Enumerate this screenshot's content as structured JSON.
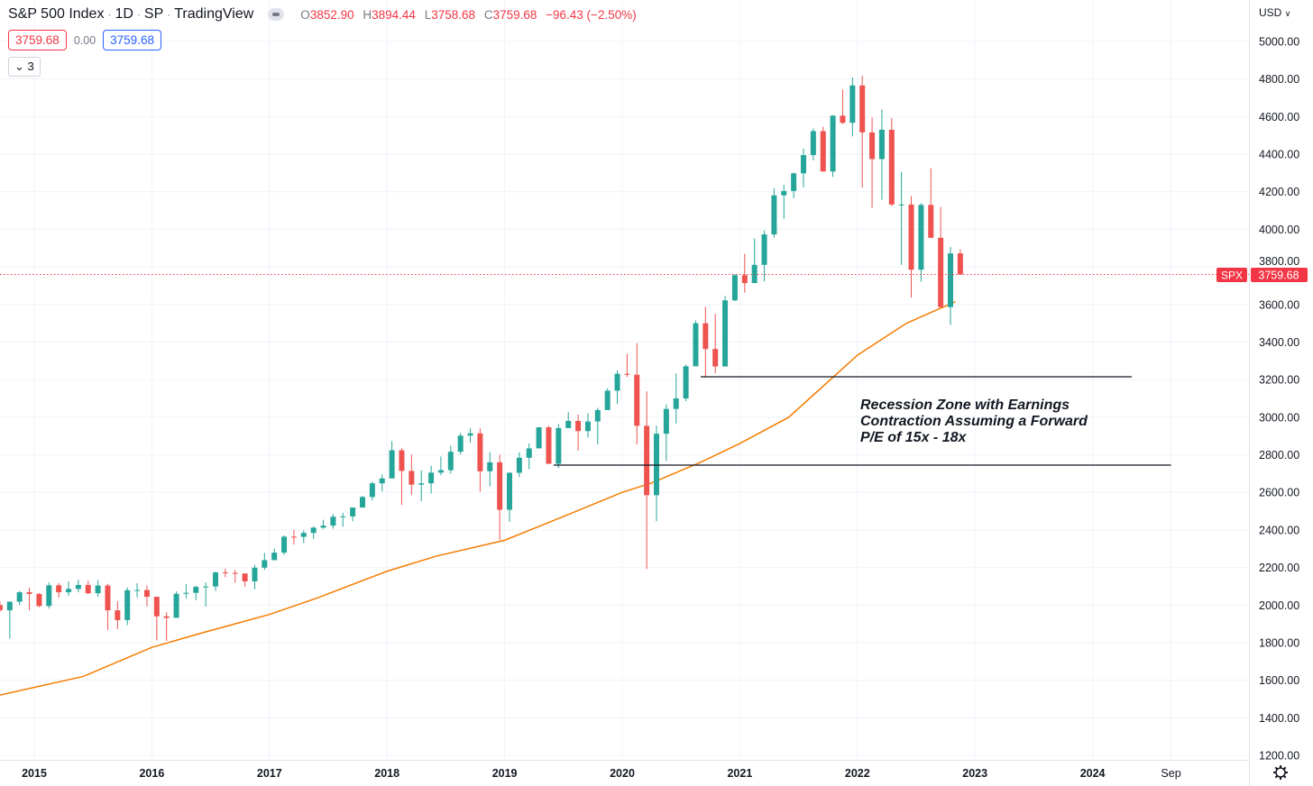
{
  "header": {
    "symbol": "S&P 500 Index",
    "interval": "1D",
    "exchange": "SP",
    "source": "TradingView",
    "ohlc": {
      "o_label": "O",
      "o": "3852.90",
      "h_label": "H",
      "h": "3894.44",
      "l_label": "L",
      "l": "3758.68",
      "c_label": "C",
      "c": "3759.68",
      "change": "−96.43 (−2.50%)"
    },
    "bid": "3759.68",
    "spread": "0.00",
    "ask": "3759.68",
    "indicators_toggle": "3"
  },
  "currency": "USD",
  "colors": {
    "up": "#26a69a",
    "down": "#ef5350",
    "sma": "#f57c00",
    "price_line": "#f23645",
    "level_lines": "#131722"
  },
  "chart_data": {
    "type": "candlestick",
    "y_ticks": [
      "5000.00",
      "4800.00",
      "4600.00",
      "4400.00",
      "4200.00",
      "4000.00",
      "3800.00",
      "3600.00",
      "3400.00",
      "3200.00",
      "3000.00",
      "2800.00",
      "2600.00",
      "2400.00",
      "2200.00",
      "2000.00",
      "1800.00",
      "1600.00",
      "1400.00",
      "1200.00"
    ],
    "ylim": [
      1200,
      5000
    ],
    "x_ticks": [
      {
        "label": "2015",
        "t": "2015-01"
      },
      {
        "label": "2016",
        "t": "2016-01"
      },
      {
        "label": "2017",
        "t": "2017-01"
      },
      {
        "label": "2018",
        "t": "2018-01"
      },
      {
        "label": "2019",
        "t": "2019-01"
      },
      {
        "label": "2020",
        "t": "2020-01"
      },
      {
        "label": "2021",
        "t": "2021-01"
      },
      {
        "label": "2022",
        "t": "2022-01"
      },
      {
        "label": "2023",
        "t": "2023-01"
      },
      {
        "label": "2024",
        "t": "2024-01"
      },
      {
        "label": "Sep",
        "t": "2024-09"
      }
    ],
    "xlim": [
      "2014-09",
      "2025-06"
    ],
    "grid": true,
    "last_price": {
      "symbol_label": "SPX",
      "value": 3759.68,
      "value_label": "3759.68"
    },
    "candles": [
      [
        "2014-09",
        2000,
        2019,
        1964,
        1972
      ],
      [
        "2014-10",
        1972,
        2018,
        1821,
        2018
      ],
      [
        "2014-11",
        2018,
        2075,
        2001,
        2068
      ],
      [
        "2014-12",
        2068,
        2093,
        1973,
        2059
      ],
      [
        "2015-01",
        2059,
        2064,
        1988,
        1995
      ],
      [
        "2015-02",
        1995,
        2120,
        1981,
        2105
      ],
      [
        "2015-03",
        2105,
        2118,
        2040,
        2068
      ],
      [
        "2015-04",
        2068,
        2126,
        2048,
        2086
      ],
      [
        "2015-05",
        2086,
        2135,
        2068,
        2107
      ],
      [
        "2015-06",
        2107,
        2130,
        2057,
        2063
      ],
      [
        "2015-07",
        2063,
        2133,
        2045,
        2104
      ],
      [
        "2015-08",
        2104,
        2113,
        1867,
        1972
      ],
      [
        "2015-09",
        1972,
        2021,
        1872,
        1920
      ],
      [
        "2015-10",
        1920,
        2094,
        1893,
        2079
      ],
      [
        "2015-11",
        2079,
        2116,
        2040,
        2080
      ],
      [
        "2015-12",
        2080,
        2105,
        1993,
        2044
      ],
      [
        "2016-01",
        2044,
        2044,
        1812,
        1940
      ],
      [
        "2016-02",
        1940,
        1962,
        1810,
        1932
      ],
      [
        "2016-03",
        1932,
        2073,
        1937,
        2060
      ],
      [
        "2016-04",
        2060,
        2111,
        2034,
        2065
      ],
      [
        "2016-05",
        2065,
        2103,
        2026,
        2097
      ],
      [
        "2016-06",
        2097,
        2120,
        1992,
        2099
      ],
      [
        "2016-07",
        2099,
        2178,
        2075,
        2174
      ],
      [
        "2016-08",
        2174,
        2194,
        2148,
        2171
      ],
      [
        "2016-09",
        2171,
        2187,
        2119,
        2168
      ],
      [
        "2016-10",
        2168,
        2169,
        2098,
        2126
      ],
      [
        "2016-11",
        2126,
        2214,
        2084,
        2199
      ],
      [
        "2016-12",
        2199,
        2278,
        2187,
        2239
      ],
      [
        "2017-01",
        2239,
        2301,
        2245,
        2279
      ],
      [
        "2017-02",
        2279,
        2371,
        2267,
        2364
      ],
      [
        "2017-03",
        2364,
        2401,
        2322,
        2363
      ],
      [
        "2017-04",
        2363,
        2398,
        2329,
        2384
      ],
      [
        "2017-05",
        2384,
        2418,
        2352,
        2412
      ],
      [
        "2017-06",
        2412,
        2454,
        2406,
        2423
      ],
      [
        "2017-07",
        2423,
        2484,
        2407,
        2470
      ],
      [
        "2017-08",
        2470,
        2491,
        2417,
        2472
      ],
      [
        "2017-09",
        2472,
        2519,
        2446,
        2519
      ],
      [
        "2017-10",
        2519,
        2582,
        2520,
        2575
      ],
      [
        "2017-11",
        2575,
        2657,
        2557,
        2648
      ],
      [
        "2017-12",
        2648,
        2695,
        2605,
        2674
      ],
      [
        "2018-01",
        2674,
        2873,
        2682,
        2824
      ],
      [
        "2018-02",
        2824,
        2835,
        2533,
        2714
      ],
      [
        "2018-03",
        2714,
        2801,
        2586,
        2641
      ],
      [
        "2018-04",
        2641,
        2718,
        2553,
        2648
      ],
      [
        "2018-05",
        2648,
        2742,
        2594,
        2705
      ],
      [
        "2018-06",
        2705,
        2791,
        2691,
        2718
      ],
      [
        "2018-07",
        2718,
        2848,
        2699,
        2816
      ],
      [
        "2018-08",
        2816,
        2917,
        2802,
        2902
      ],
      [
        "2018-09",
        2902,
        2941,
        2864,
        2914
      ],
      [
        "2018-10",
        2914,
        2940,
        2604,
        2712
      ],
      [
        "2018-11",
        2712,
        2815,
        2631,
        2760
      ],
      [
        "2018-12",
        2760,
        2800,
        2346,
        2507
      ],
      [
        "2019-01",
        2507,
        2708,
        2443,
        2704
      ],
      [
        "2019-02",
        2704,
        2813,
        2681,
        2784
      ],
      [
        "2019-03",
        2784,
        2860,
        2723,
        2834
      ],
      [
        "2019-04",
        2834,
        2949,
        2848,
        2946
      ],
      [
        "2019-05",
        2946,
        2954,
        2751,
        2752
      ],
      [
        "2019-06",
        2752,
        2964,
        2729,
        2942
      ],
      [
        "2019-07",
        2942,
        3028,
        2952,
        2980
      ],
      [
        "2019-08",
        2980,
        3014,
        2822,
        2926
      ],
      [
        "2019-09",
        2926,
        3022,
        2892,
        2977
      ],
      [
        "2019-10",
        2977,
        3050,
        2855,
        3038
      ],
      [
        "2019-11",
        3038,
        3154,
        3050,
        3141
      ],
      [
        "2019-12",
        3141,
        3248,
        3070,
        3231
      ],
      [
        "2020-01",
        3231,
        3338,
        3214,
        3226
      ],
      [
        "2020-02",
        3226,
        3394,
        2855,
        2954
      ],
      [
        "2020-03",
        2954,
        3137,
        2192,
        2585
      ],
      [
        "2020-04",
        2585,
        2955,
        2447,
        2912
      ],
      [
        "2020-05",
        2912,
        3068,
        2767,
        3044
      ],
      [
        "2020-06",
        3044,
        3233,
        2966,
        3100
      ],
      [
        "2020-07",
        3100,
        3280,
        3085,
        3271
      ],
      [
        "2020-08",
        3271,
        3515,
        3285,
        3500
      ],
      [
        "2020-09",
        3500,
        3588,
        3210,
        3363
      ],
      [
        "2020-10",
        3363,
        3550,
        3234,
        3270
      ],
      [
        "2020-11",
        3270,
        3646,
        3280,
        3622
      ],
      [
        "2020-12",
        3622,
        3761,
        3618,
        3756
      ],
      [
        "2021-01",
        3756,
        3870,
        3663,
        3714
      ],
      [
        "2021-02",
        3714,
        3951,
        3725,
        3811
      ],
      [
        "2021-03",
        3811,
        3994,
        3723,
        3973
      ],
      [
        "2021-04",
        3973,
        4219,
        3955,
        4181
      ],
      [
        "2021-05",
        4181,
        4238,
        4056,
        4204
      ],
      [
        "2021-06",
        4204,
        4302,
        4165,
        4298
      ],
      [
        "2021-07",
        4298,
        4429,
        4224,
        4395
      ],
      [
        "2021-08",
        4395,
        4537,
        4367,
        4523
      ],
      [
        "2021-09",
        4523,
        4546,
        4306,
        4308
      ],
      [
        "2021-10",
        4308,
        4608,
        4279,
        4605
      ],
      [
        "2021-11",
        4605,
        4743,
        4560,
        4567
      ],
      [
        "2021-12",
        4567,
        4808,
        4495,
        4766
      ],
      [
        "2022-01",
        4766,
        4818,
        4222,
        4516
      ],
      [
        "2022-02",
        4516,
        4595,
        4115,
        4374
      ],
      [
        "2022-03",
        4374,
        4637,
        4157,
        4530
      ],
      [
        "2022-04",
        4530,
        4593,
        4124,
        4132
      ],
      [
        "2022-05",
        4132,
        4307,
        3811,
        4132
      ],
      [
        "2022-06",
        4132,
        4177,
        3637,
        3785
      ],
      [
        "2022-07",
        3785,
        4140,
        3721,
        4130
      ],
      [
        "2022-08",
        4130,
        4325,
        3954,
        3955
      ],
      [
        "2022-09",
        3955,
        4119,
        3585,
        3586
      ],
      [
        "2022-10",
        3586,
        3906,
        3491,
        3872
      ],
      [
        "2022-11",
        3872,
        3894,
        3758,
        3760
      ]
    ],
    "moving_average": [
      [
        "2014-09",
        1515
      ],
      [
        "2015-06",
        1620
      ],
      [
        "2016-01",
        1775
      ],
      [
        "2016-06",
        1850
      ],
      [
        "2017-01",
        1950
      ],
      [
        "2017-06",
        2040
      ],
      [
        "2018-01",
        2180
      ],
      [
        "2018-06",
        2260
      ],
      [
        "2019-01",
        2345
      ],
      [
        "2019-06",
        2450
      ],
      [
        "2020-01",
        2600
      ],
      [
        "2020-04",
        2650
      ],
      [
        "2020-09",
        2760
      ],
      [
        "2021-01",
        2860
      ],
      [
        "2021-06",
        3000
      ],
      [
        "2022-01",
        3330
      ],
      [
        "2022-06",
        3500
      ],
      [
        "2022-11",
        3615
      ]
    ],
    "levels": [
      {
        "value": 3215,
        "from": "2020-09",
        "to": "2024-05"
      },
      {
        "value": 2745,
        "from": "2019-06",
        "to": "2024-09"
      }
    ],
    "annotation": {
      "lines": [
        "Recession Zone with Earnings",
        "Contraction Assuming a Forward",
        "P/E of 15x - 18x"
      ]
    }
  }
}
